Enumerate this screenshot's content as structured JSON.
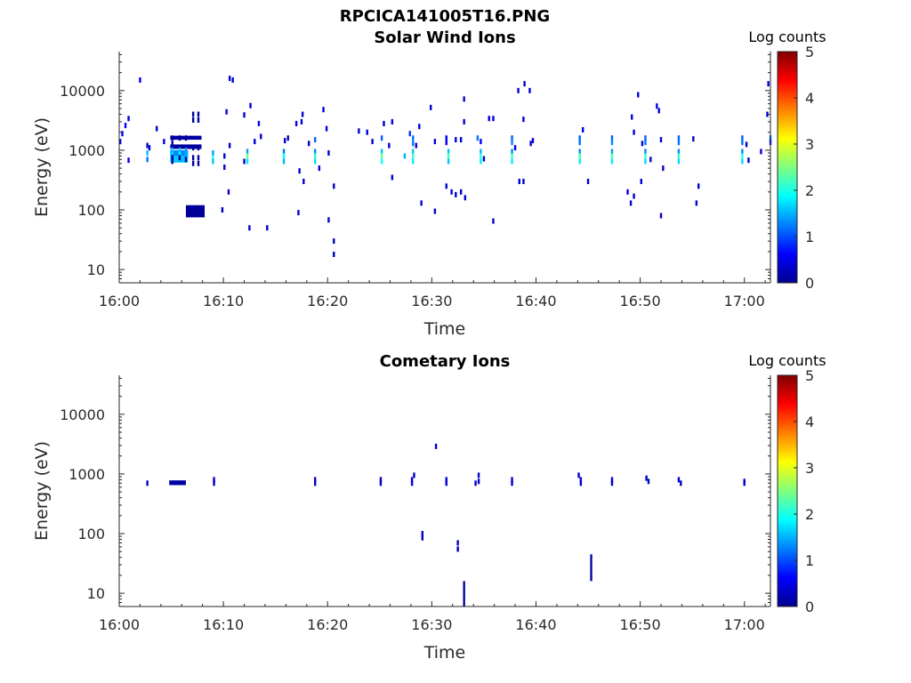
{
  "figure": {
    "title": "RPCICA141005T16.PNG"
  },
  "chart_data": [
    {
      "type": "heatmap",
      "title": "Solar Wind Ions",
      "xlabel": "Time",
      "ylabel": "Energy (eV)",
      "x_ticks": [
        "16:00",
        "16:10",
        "16:20",
        "16:30",
        "16:40",
        "16:50",
        "17:00"
      ],
      "x_range_minutes": [
        0,
        62.5
      ],
      "y_scale": "log",
      "y_ticks": [
        "10",
        "100",
        "1000",
        "10000"
      ],
      "y_range": [
        6,
        45000
      ],
      "colorbar": {
        "label": "Log counts",
        "range": [
          0,
          5
        ],
        "ticks": [
          "0",
          "1",
          "2",
          "3",
          "4",
          "5"
        ]
      },
      "cells": [
        [
          0.3,
          1900,
          0.6
        ],
        [
          0.6,
          2600,
          0.6
        ],
        [
          0.9,
          3400,
          0.5
        ],
        [
          0.1,
          1400,
          0.5
        ],
        [
          0.9,
          680,
          0.4
        ],
        [
          2.0,
          15000,
          0.5
        ],
        [
          2.7,
          1200,
          0.5
        ],
        [
          2.7,
          900,
          1.6
        ],
        [
          2.7,
          700,
          1.2
        ],
        [
          2.9,
          1100,
          0.4
        ],
        [
          3.6,
          2300,
          0.4
        ],
        [
          4.3,
          1400,
          0.4
        ],
        [
          5.1,
          1600,
          0.1
        ],
        [
          5.1,
          1300,
          0.1
        ],
        [
          5.1,
          1000,
          1.6
        ],
        [
          5.1,
          850,
          1.7
        ],
        [
          5.1,
          750,
          0.1
        ],
        [
          5.1,
          650,
          0.1
        ],
        [
          5.8,
          1600,
          0.1
        ],
        [
          5.8,
          1000,
          1.6
        ],
        [
          5.8,
          850,
          1.9
        ],
        [
          5.8,
          750,
          0.1
        ],
        [
          6.4,
          1600,
          0.1
        ],
        [
          6.4,
          1000,
          1.4
        ],
        [
          6.4,
          850,
          1.5
        ],
        [
          6.4,
          700,
          0.1
        ],
        [
          7.1,
          4000,
          0.1
        ],
        [
          7.1,
          3200,
          0.1
        ],
        [
          7.1,
          1100,
          0.1
        ],
        [
          7.1,
          750,
          0.1
        ],
        [
          7.1,
          600,
          0.1
        ],
        [
          7.1,
          90,
          0.1
        ],
        [
          7.6,
          4000,
          0.1
        ],
        [
          7.6,
          3200,
          0.1
        ],
        [
          7.6,
          1100,
          0.1
        ],
        [
          7.6,
          750,
          0.1
        ],
        [
          7.6,
          600,
          0.1
        ],
        [
          7.6,
          90,
          0.1
        ],
        [
          9.0,
          900,
          1.4
        ],
        [
          9.0,
          750,
          2.0
        ],
        [
          9.0,
          650,
          1.6
        ],
        [
          9.9,
          100,
          0.3
        ],
        [
          10.1,
          800,
          0.4
        ],
        [
          10.1,
          520,
          0.4
        ],
        [
          10.3,
          4400,
          0.4
        ],
        [
          10.5,
          200,
          0.4
        ],
        [
          10.6,
          1200,
          0.4
        ],
        [
          10.6,
          16000,
          0.4
        ],
        [
          10.9,
          15000,
          0.4
        ],
        [
          12.0,
          3900,
          0.4
        ],
        [
          12.0,
          650,
          0.4
        ],
        [
          12.3,
          950,
          1.4
        ],
        [
          12.3,
          800,
          2.4
        ],
        [
          12.3,
          650,
          1.8
        ],
        [
          12.5,
          50,
          0.3
        ],
        [
          12.6,
          5600,
          0.4
        ],
        [
          13.0,
          1400,
          0.4
        ],
        [
          13.4,
          2800,
          0.5
        ],
        [
          13.6,
          1700,
          0.4
        ],
        [
          14.2,
          50,
          0.3
        ],
        [
          15.8,
          950,
          1.2
        ],
        [
          15.8,
          800,
          1.9
        ],
        [
          15.8,
          650,
          1.5
        ],
        [
          15.9,
          1450,
          0.4
        ],
        [
          16.2,
          1600,
          0.4
        ],
        [
          17.0,
          2800,
          0.4
        ],
        [
          17.2,
          90,
          0.3
        ],
        [
          17.3,
          450,
          0.4
        ],
        [
          17.5,
          3000,
          0.4
        ],
        [
          17.7,
          300,
          0.4
        ],
        [
          17.6,
          4000,
          0.4
        ],
        [
          18.2,
          1300,
          0.3
        ],
        [
          18.8,
          1500,
          1.1
        ],
        [
          18.8,
          950,
          1.3
        ],
        [
          18.8,
          800,
          2.0
        ],
        [
          18.8,
          650,
          1.7
        ],
        [
          19.2,
          500,
          0.4
        ],
        [
          19.6,
          4800,
          0.4
        ],
        [
          19.9,
          2300,
          0.4
        ],
        [
          20.1,
          900,
          0.4
        ],
        [
          20.1,
          68,
          0.3
        ],
        [
          20.6,
          250,
          0.3
        ],
        [
          20.6,
          30,
          0.3
        ],
        [
          20.6,
          18,
          0.3
        ],
        [
          23.0,
          2100,
          0.4
        ],
        [
          23.8,
          2000,
          0.4
        ],
        [
          24.3,
          1400,
          0.4
        ],
        [
          25.2,
          1600,
          1.1
        ],
        [
          25.2,
          950,
          1.6
        ],
        [
          25.2,
          800,
          2.4
        ],
        [
          25.2,
          650,
          1.9
        ],
        [
          25.4,
          2800,
          0.4
        ],
        [
          25.9,
          1200,
          0.4
        ],
        [
          26.2,
          3000,
          0.4
        ],
        [
          26.2,
          350,
          0.4
        ],
        [
          27.4,
          800,
          1.5
        ],
        [
          27.9,
          1900,
          0.9
        ],
        [
          28.2,
          1600,
          1.2
        ],
        [
          28.2,
          1300,
          1.2
        ],
        [
          28.2,
          950,
          1.6
        ],
        [
          28.2,
          800,
          2.2
        ],
        [
          28.2,
          650,
          1.8
        ],
        [
          28.5,
          1200,
          0.4
        ],
        [
          28.8,
          2500,
          0.4
        ],
        [
          29.0,
          130,
          0.4
        ],
        [
          29.9,
          5200,
          0.4
        ],
        [
          30.3,
          1400,
          0.4
        ],
        [
          30.3,
          95,
          0.3
        ],
        [
          31.4,
          1600,
          0.6
        ],
        [
          31.4,
          1350,
          0.5
        ],
        [
          31.6,
          950,
          1.6
        ],
        [
          31.6,
          800,
          2.2
        ],
        [
          31.6,
          650,
          1.6
        ],
        [
          31.4,
          250,
          0.4
        ],
        [
          31.9,
          200,
          0.4
        ],
        [
          32.3,
          1500,
          0.4
        ],
        [
          32.3,
          180,
          0.4
        ],
        [
          32.8,
          1500,
          0.4
        ],
        [
          32.8,
          200,
          0.4
        ],
        [
          33.1,
          7200,
          0.4
        ],
        [
          33.1,
          3000,
          0.4
        ],
        [
          33.2,
          160,
          0.4
        ],
        [
          34.4,
          1600,
          1.2
        ],
        [
          34.7,
          1400,
          0.6
        ],
        [
          34.7,
          950,
          1.5
        ],
        [
          34.7,
          800,
          2.1
        ],
        [
          34.7,
          650,
          1.8
        ],
        [
          35.0,
          720,
          0.4
        ],
        [
          35.5,
          3400,
          0.4
        ],
        [
          35.9,
          3400,
          0.4
        ],
        [
          35.9,
          65,
          0.3
        ],
        [
          37.7,
          1600,
          1.1
        ],
        [
          37.7,
          1350,
          1.3
        ],
        [
          37.7,
          950,
          1.3
        ],
        [
          37.7,
          800,
          2.2
        ],
        [
          37.7,
          650,
          1.8
        ],
        [
          38.0,
          1100,
          0.4
        ],
        [
          38.4,
          300,
          0.4
        ],
        [
          38.8,
          3300,
          0.4
        ],
        [
          38.8,
          300,
          0.4
        ],
        [
          38.9,
          13000,
          0.4
        ],
        [
          38.3,
          10000,
          0.4
        ],
        [
          39.4,
          10000,
          0.4
        ],
        [
          39.5,
          1300,
          0.4
        ],
        [
          39.7,
          1450,
          0.4
        ],
        [
          44.2,
          1600,
          1.1
        ],
        [
          44.2,
          1350,
          1.2
        ],
        [
          44.2,
          950,
          1.3
        ],
        [
          44.2,
          800,
          2.2
        ],
        [
          44.2,
          650,
          1.8
        ],
        [
          44.5,
          2200,
          0.4
        ],
        [
          45.0,
          300,
          0.4
        ],
        [
          47.3,
          1600,
          1.1
        ],
        [
          47.3,
          1350,
          1.3
        ],
        [
          47.3,
          950,
          1.4
        ],
        [
          47.3,
          800,
          2.2
        ],
        [
          47.3,
          650,
          1.8
        ],
        [
          48.8,
          200,
          0.4
        ],
        [
          49.1,
          130,
          0.4
        ],
        [
          49.4,
          170,
          0.4
        ],
        [
          49.2,
          3600,
          0.4
        ],
        [
          49.4,
          2000,
          0.4
        ],
        [
          49.8,
          8500,
          0.4
        ],
        [
          50.5,
          1600,
          1.1
        ],
        [
          50.5,
          1350,
          1.2
        ],
        [
          50.5,
          950,
          1.3
        ],
        [
          50.5,
          800,
          2.1
        ],
        [
          50.5,
          650,
          1.7
        ],
        [
          50.2,
          1300,
          0.4
        ],
        [
          50.1,
          300,
          0.4
        ],
        [
          51.0,
          700,
          0.4
        ],
        [
          51.6,
          5500,
          0.4
        ],
        [
          51.8,
          4600,
          0.4
        ],
        [
          52.0,
          1500,
          0.4
        ],
        [
          52.0,
          80,
          0.3
        ],
        [
          52.2,
          500,
          0.4
        ],
        [
          53.7,
          1600,
          1.1
        ],
        [
          53.7,
          1350,
          1.2
        ],
        [
          53.7,
          950,
          1.3
        ],
        [
          53.7,
          800,
          2.1
        ],
        [
          53.7,
          650,
          1.7
        ],
        [
          55.1,
          1550,
          0.4
        ],
        [
          55.6,
          250,
          0.4
        ],
        [
          55.4,
          130,
          0.4
        ],
        [
          59.8,
          1600,
          1.1
        ],
        [
          59.8,
          1350,
          1.2
        ],
        [
          59.8,
          950,
          1.3
        ],
        [
          59.8,
          800,
          2.0
        ],
        [
          59.8,
          650,
          1.7
        ],
        [
          60.2,
          1250,
          0.4
        ],
        [
          60.4,
          680,
          0.4
        ],
        [
          61.6,
          950,
          0.4
        ],
        [
          62.2,
          4000,
          0.4
        ],
        [
          62.3,
          13000,
          0.4
        ],
        [
          62.5,
          1600,
          1.2
        ],
        [
          62.5,
          1350,
          0.8
        ]
      ],
      "blocks": [
        [
          4.9,
          7.9,
          1500,
          1750,
          0.1
        ],
        [
          4.9,
          7.9,
          1050,
          1250,
          0.1
        ],
        [
          4.9,
          6.6,
          800,
          1000,
          1.3
        ],
        [
          4.9,
          6.6,
          620,
          800,
          1.6
        ],
        [
          6.4,
          8.2,
          75,
          120,
          0.05
        ]
      ]
    },
    {
      "type": "heatmap",
      "title": "Cometary Ions",
      "xlabel": "Time",
      "ylabel": "Energy (eV)",
      "x_ticks": [
        "16:00",
        "16:10",
        "16:20",
        "16:30",
        "16:40",
        "16:50",
        "17:00"
      ],
      "x_range_minutes": [
        0,
        62.5
      ],
      "y_scale": "log",
      "y_ticks": [
        "10",
        "100",
        "1000",
        "10000"
      ],
      "y_range": [
        6,
        45000
      ],
      "colorbar": {
        "label": "Log counts",
        "range": [
          0,
          5
        ],
        "ticks": [
          "0",
          "1",
          "2",
          "3",
          "4",
          "5"
        ]
      },
      "cells": [
        [
          2.7,
          700,
          0.3
        ],
        [
          9.1,
          800,
          0.3
        ],
        [
          9.1,
          700,
          0.3
        ],
        [
          18.8,
          800,
          0.3
        ],
        [
          18.8,
          700,
          0.3
        ],
        [
          25.1,
          800,
          0.3
        ],
        [
          25.1,
          700,
          0.3
        ],
        [
          28.1,
          800,
          0.4
        ],
        [
          28.1,
          700,
          0.5
        ],
        [
          28.3,
          950,
          0.3
        ],
        [
          29.1,
          100,
          0.3
        ],
        [
          29.1,
          85,
          0.3
        ],
        [
          30.4,
          2900,
          0.3
        ],
        [
          31.4,
          800,
          0.4
        ],
        [
          31.4,
          700,
          0.4
        ],
        [
          32.5,
          70,
          0.3
        ],
        [
          32.5,
          55,
          0.3
        ],
        [
          34.5,
          950,
          0.3
        ],
        [
          34.5,
          750,
          0.3
        ],
        [
          34.2,
          700,
          0.3
        ],
        [
          37.7,
          800,
          0.4
        ],
        [
          37.7,
          700,
          0.4
        ],
        [
          44.1,
          950,
          0.3
        ],
        [
          44.3,
          800,
          0.4
        ],
        [
          44.3,
          700,
          0.4
        ],
        [
          47.3,
          800,
          0.4
        ],
        [
          47.3,
          700,
          0.3
        ],
        [
          50.6,
          850,
          0.3
        ],
        [
          50.8,
          750,
          0.3
        ],
        [
          53.7,
          800,
          0.4
        ],
        [
          53.9,
          700,
          0.3
        ],
        [
          60.0,
          750,
          0.5
        ],
        [
          60.0,
          700,
          0.3
        ]
      ],
      "blocks": [
        [
          4.8,
          6.4,
          650,
          780,
          0.1
        ],
        [
          33.0,
          33.2,
          6,
          16,
          0.1
        ],
        [
          45.2,
          45.4,
          16,
          45,
          0.1
        ]
      ]
    }
  ]
}
